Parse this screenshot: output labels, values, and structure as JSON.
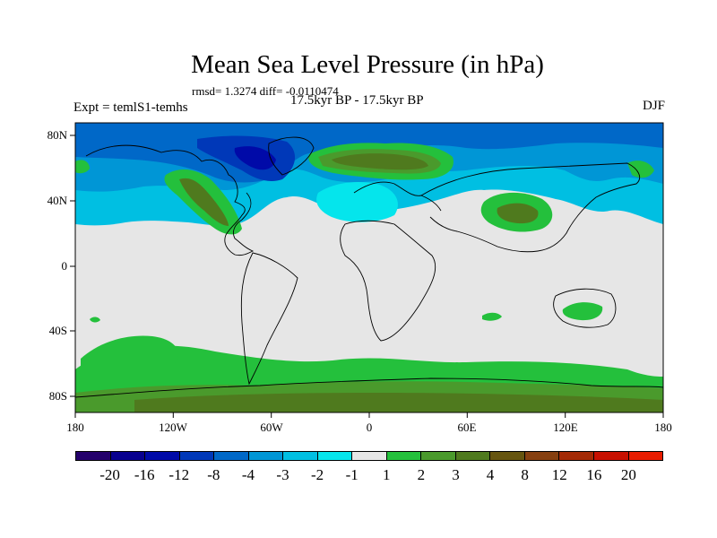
{
  "title": "Mean Sea Level Pressure (in hPa)",
  "stats": "rmsd= 1.3274 diff= -0.0110474",
  "expt": "Expt = temlS1-temhs",
  "period": "17.5kyr BP - 17.5kyr BP",
  "season": "DJF",
  "lon_ticks": [
    "180",
    "120W",
    "60W",
    "0",
    "60E",
    "120E",
    "180"
  ],
  "lat_ticks": [
    "80N",
    "40N",
    "0",
    "40S",
    "80S"
  ],
  "colorbar": {
    "colors": [
      "#24006b",
      "#08008f",
      "#000aa8",
      "#0038b8",
      "#0068c8",
      "#0096d6",
      "#00bfe2",
      "#05e5ec",
      "#e6e6e6",
      "#24c03c",
      "#4a9a2c",
      "#4f7a1e",
      "#66550f",
      "#864010",
      "#a42a05",
      "#c81000",
      "#e81c00"
    ],
    "labels": [
      "-20",
      "-16",
      "-12",
      "-8",
      "-4",
      "-3",
      "-2",
      "-1",
      "1",
      "2",
      "3",
      "4",
      "8",
      "12",
      "16",
      "20"
    ]
  }
}
